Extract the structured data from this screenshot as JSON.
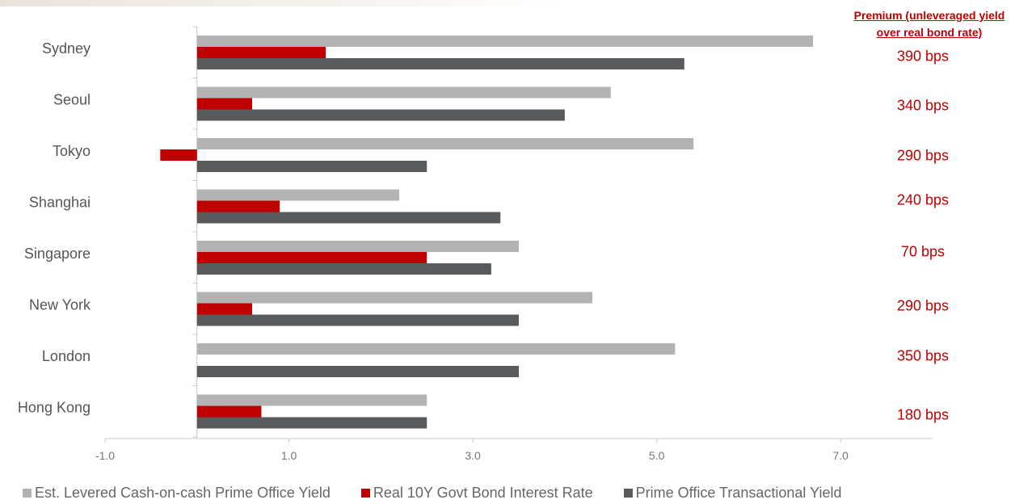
{
  "chart_data": {
    "type": "bar",
    "orientation": "horizontal",
    "categories": [
      "Sydney",
      "Seoul",
      "Tokyo",
      "Shanghai",
      "Singapore",
      "New York",
      "London",
      "Hong Kong"
    ],
    "series": [
      {
        "name": "Est. Levered Cash-on-cash Prime Office Yield",
        "color": "#b3b3b3",
        "values": [
          6.7,
          4.5,
          5.4,
          2.2,
          3.5,
          4.3,
          5.2,
          2.5
        ]
      },
      {
        "name": "Real 10Y Govt Bond Interest Rate",
        "color": "#c00000",
        "values": [
          1.4,
          0.6,
          -0.4,
          0.9,
          2.5,
          0.6,
          0.0,
          0.7
        ]
      },
      {
        "name": "Prime Office Transactional Yield",
        "color": "#595a5c",
        "values": [
          5.3,
          4.0,
          2.5,
          3.3,
          3.2,
          3.5,
          3.5,
          2.5
        ]
      }
    ],
    "xlim": [
      -1.0,
      8.0
    ],
    "xticks": [
      "-1.0",
      "1.0",
      "3.0",
      "5.0",
      "7.0"
    ],
    "legend_position": "bottom",
    "grid": false
  },
  "premium": {
    "header_line1": "Premium (unleveraged yield",
    "header_line2": "over real bond rate)",
    "values": [
      "390 bps",
      "340 bps",
      "290 bps",
      "240 bps",
      "70 bps",
      "290 bps",
      "350 bps",
      "180 bps"
    ]
  }
}
